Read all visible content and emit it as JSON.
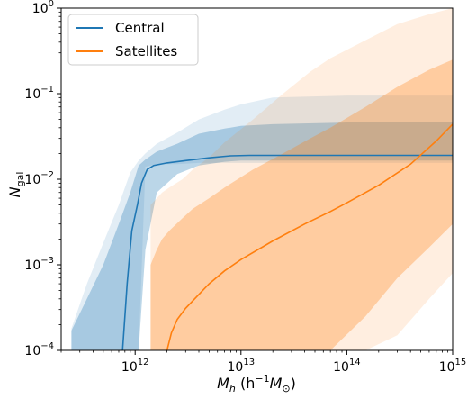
{
  "chart_data": {
    "type": "line",
    "title": "",
    "xlabel": {
      "base": "M",
      "sub": "h",
      "units_pre": " (h",
      "units_exp": "−1",
      "units_post": "M",
      "units_sub": "⊙",
      "units_close": ")"
    },
    "ylabel": {
      "base": "N",
      "sub": "gal"
    },
    "xscale": "log",
    "yscale": "log",
    "xlim": [
      200000000000.0,
      1000000000000000.0
    ],
    "ylim": [
      0.0001,
      1
    ],
    "xticks": [
      {
        "value": 1000000000000.0,
        "base": "10",
        "exp": "12"
      },
      {
        "value": 10000000000000.0,
        "base": "10",
        "exp": "13"
      },
      {
        "value": 100000000000000.0,
        "base": "10",
        "exp": "14"
      },
      {
        "value": 1000000000000000.0,
        "base": "10",
        "exp": "15"
      }
    ],
    "yticks": [
      {
        "value": 0.0001,
        "base": "10",
        "exp": "−4"
      },
      {
        "value": 0.001,
        "base": "10",
        "exp": "−3"
      },
      {
        "value": 0.01,
        "base": "10",
        "exp": "−2"
      },
      {
        "value": 0.1,
        "base": "10",
        "exp": "−1"
      },
      {
        "value": 1,
        "base": "10",
        "exp": "0"
      }
    ],
    "legend_position": "top-left",
    "grid": false,
    "series": [
      {
        "name": "Central",
        "color": "#1f77b4",
        "x": [
          760000000000.0,
          840000000000.0,
          930000000000.0,
          1050000000000.0,
          1150000000000.0,
          1300000000000.0,
          1500000000000.0,
          2000000000000.0,
          3000000000000.0,
          5000000000000.0,
          8000000000000.0,
          12000000000000.0,
          20000000000000.0,
          100000000000000.0,
          1000000000000000.0
        ],
        "y": [
          0.0001,
          0.0006,
          0.0025,
          0.005,
          0.009,
          0.013,
          0.0145,
          0.0155,
          0.0165,
          0.0178,
          0.0188,
          0.019,
          0.019,
          0.019,
          0.019
        ],
        "band68_lo": [
          0.0001,
          0.0001,
          0.0001,
          0.0001,
          0.0001,
          0.0001,
          0.0015,
          0.007,
          0.0115,
          0.0145,
          0.016,
          0.0165,
          0.0165,
          0.0165,
          0.0165
        ],
        "band68_hi": [
          0.00017,
          0.0004,
          0.001,
          0.003,
          0.007,
          0.0145,
          0.017,
          0.021,
          0.026,
          0.034,
          0.039,
          0.042,
          0.044,
          0.046,
          0.046
        ],
        "band95_lo": [
          0.0001,
          0.0001,
          0.0001,
          0.0001,
          0.0001,
          0.0001,
          0.014,
          0.015,
          0.015,
          0.0155,
          0.0155,
          0.0155,
          0.0155,
          0.0155,
          0.0155
        ],
        "band95_hi": [
          0.00018,
          0.0006,
          0.0018,
          0.005,
          0.012,
          0.0165,
          0.02,
          0.026,
          0.035,
          0.05,
          0.065,
          0.075,
          0.09,
          0.095,
          0.095
        ],
        "band_x": [
          250000000000.0,
          350000000000.0,
          500000000000.0,
          700000000000.0,
          900000000000.0,
          1080000000000.0,
          1250000000000.0,
          1600000000000.0,
          2500000000000.0,
          4000000000000.0,
          7000000000000.0,
          10000000000000.0,
          20000000000000.0,
          100000000000000.0,
          1000000000000000.0
        ]
      },
      {
        "name": "Satellites",
        "color": "#ff7f0e",
        "x": [
          2000000000000.0,
          2200000000000.0,
          2500000000000.0,
          3000000000000.0,
          4000000000000.0,
          5000000000000.0,
          7000000000000.0,
          10000000000000.0,
          20000000000000.0,
          40000000000000.0,
          70000000000000.0,
          100000000000000.0,
          200000000000000.0,
          400000000000000.0,
          700000000000000.0,
          1000000000000000.0
        ],
        "y": [
          0.0001,
          0.00016,
          0.00023,
          0.00031,
          0.00045,
          0.0006,
          0.00085,
          0.00115,
          0.0019,
          0.003,
          0.0042,
          0.0053,
          0.0085,
          0.015,
          0.028,
          0.044
        ],
        "band68_lo": [
          0.0001,
          0.0001,
          0.0001,
          0.0001,
          0.0001,
          0.0001,
          0.0001,
          0.0001,
          0.0001,
          0.0001,
          0.0001,
          0.0001,
          0.00025,
          0.0007,
          0.0016,
          0.003
        ],
        "band68_hi": [
          0.001,
          0.0015,
          0.002,
          0.0025,
          0.0035,
          0.0045,
          0.006,
          0.008,
          0.013,
          0.02,
          0.03,
          0.04,
          0.07,
          0.12,
          0.19,
          0.25
        ],
        "band95_lo": [
          0.0001,
          0.0001,
          0.0001,
          0.0001,
          0.0001,
          0.0001,
          0.0001,
          0.0001,
          0.0001,
          0.0001,
          0.0001,
          0.0001,
          0.0001,
          0.00015,
          0.0004,
          0.0008
        ],
        "band95_hi": [
          0.005,
          0.006,
          0.007,
          0.008,
          0.01,
          0.013,
          0.018,
          0.027,
          0.05,
          0.1,
          0.18,
          0.26,
          0.42,
          0.65,
          0.85,
          1
        ],
        "band_x": [
          1400000000000.0,
          1600000000000.0,
          1800000000000.0,
          2100000000000.0,
          2800000000000.0,
          3500000000000.0,
          5000000000000.0,
          7000000000000.0,
          13000000000000.0,
          25000000000000.0,
          45000000000000.0,
          70000000000000.0,
          150000000000000.0,
          300000000000000.0,
          600000000000000.0,
          1000000000000000.0
        ]
      }
    ]
  }
}
